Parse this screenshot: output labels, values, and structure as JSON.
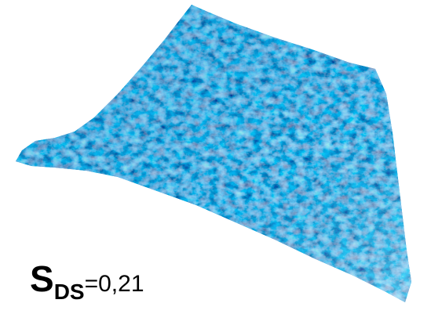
{
  "label": {
    "symbol": "S",
    "subscript": "DS",
    "value": "=0,21"
  }
}
